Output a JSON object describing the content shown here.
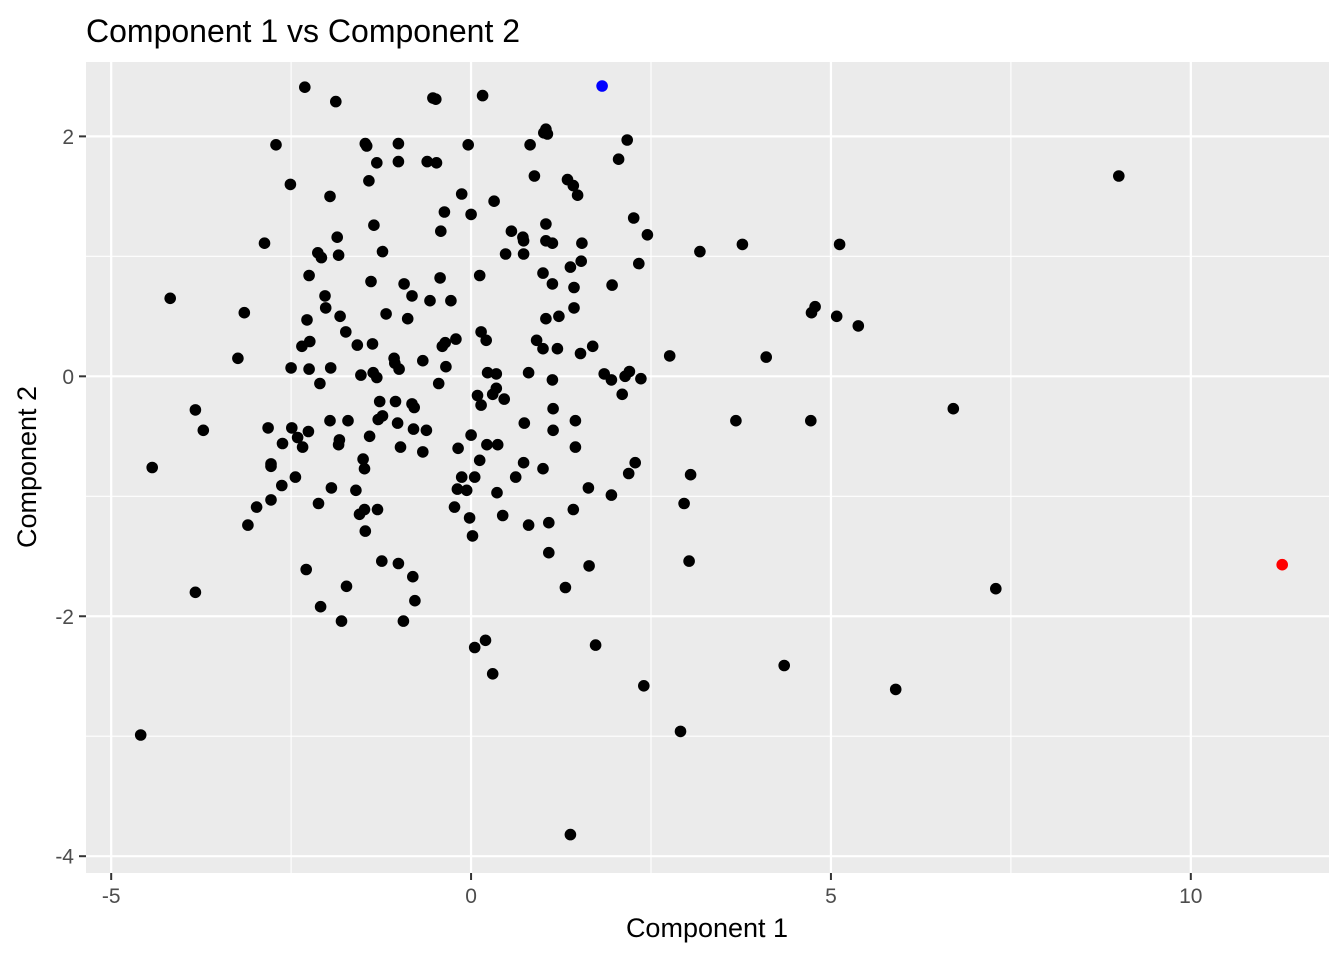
{
  "chart_data": {
    "type": "scatter",
    "title": "Component 1 vs Component 2",
    "xlabel": "Component 1",
    "ylabel": "Component 2",
    "xlim": [
      -5.35,
      11.92
    ],
    "ylim": [
      -4.14,
      2.62
    ],
    "xticks": [
      -5,
      0,
      5,
      10
    ],
    "xtick_labels": [
      "-5",
      "0",
      "5",
      "10"
    ],
    "yticks": [
      -4,
      -2,
      0,
      2
    ],
    "ytick_labels": [
      "-4",
      "-2",
      "0",
      "2"
    ],
    "grid": true,
    "legend": "none",
    "colors": {
      "panel": "#ebebeb",
      "grid": "#ffffff",
      "default_point": "#000000",
      "highlight_blue": "#0000ff",
      "highlight_red": "#ff0000"
    },
    "points": [
      [
        -2.31,
        2.41
      ],
      [
        -1.88,
        2.29
      ],
      [
        -0.53,
        2.32
      ],
      [
        -0.49,
        2.31
      ],
      [
        0.16,
        2.34
      ],
      [
        1.82,
        2.42,
        "#0000ff"
      ],
      [
        1.04,
        2.06
      ],
      [
        1.01,
        2.03
      ],
      [
        1.06,
        2.02
      ],
      [
        -2.71,
        1.93
      ],
      [
        -1.47,
        1.94
      ],
      [
        -1.45,
        1.92
      ],
      [
        -1.01,
        1.94
      ],
      [
        -0.04,
        1.93
      ],
      [
        0.82,
        1.93
      ],
      [
        2.17,
        1.97
      ],
      [
        2.05,
        1.81
      ],
      [
        -1.31,
        1.78
      ],
      [
        -1.01,
        1.79
      ],
      [
        -0.61,
        1.79
      ],
      [
        -0.48,
        1.78
      ],
      [
        0.88,
        1.67
      ],
      [
        1.34,
        1.64
      ],
      [
        1.42,
        1.59
      ],
      [
        1.48,
        1.51
      ],
      [
        -1.42,
        1.63
      ],
      [
        -2.51,
        1.6
      ],
      [
        -1.96,
        1.5
      ],
      [
        -0.13,
        1.52
      ],
      [
        0.32,
        1.46
      ],
      [
        -0.37,
        1.37
      ],
      [
        0.0,
        1.35
      ],
      [
        2.26,
        1.32
      ],
      [
        2.45,
        1.18
      ],
      [
        -1.35,
        1.26
      ],
      [
        -0.42,
        1.21
      ],
      [
        0.56,
        1.21
      ],
      [
        0.72,
        1.16
      ],
      [
        0.73,
        1.13
      ],
      [
        1.04,
        1.13
      ],
      [
        1.13,
        1.11
      ],
      [
        1.54,
        1.11
      ],
      [
        -2.87,
        1.11
      ],
      [
        -1.86,
        1.16
      ],
      [
        -2.13,
        1.03
      ],
      [
        -2.08,
        0.99
      ],
      [
        -1.84,
        1.01
      ],
      [
        -1.23,
        1.04
      ],
      [
        0.48,
        1.02
      ],
      [
        0.73,
        1.02
      ],
      [
        1.04,
        1.27
      ],
      [
        1.53,
        0.96
      ],
      [
        1.38,
        0.91
      ],
      [
        2.33,
        0.94
      ],
      [
        3.18,
        1.04
      ],
      [
        3.77,
        1.1
      ],
      [
        5.12,
        1.1
      ],
      [
        -2.25,
        0.84
      ],
      [
        -1.39,
        0.79
      ],
      [
        -0.43,
        0.82
      ],
      [
        0.12,
        0.84
      ],
      [
        1.0,
        0.86
      ],
      [
        1.13,
        0.77
      ],
      [
        1.43,
        0.74
      ],
      [
        1.96,
        0.76
      ],
      [
        -4.18,
        0.65
      ],
      [
        -2.03,
        0.67
      ],
      [
        -0.93,
        0.77
      ],
      [
        -0.82,
        0.67
      ],
      [
        -0.57,
        0.63
      ],
      [
        -0.28,
        0.63
      ],
      [
        4.73,
        0.53
      ],
      [
        4.78,
        0.58
      ],
      [
        5.08,
        0.5
      ],
      [
        5.38,
        0.42
      ],
      [
        -3.15,
        0.53
      ],
      [
        -2.02,
        0.57
      ],
      [
        -1.82,
        0.5
      ],
      [
        -1.18,
        0.52
      ],
      [
        -0.88,
        0.48
      ],
      [
        1.04,
        0.48
      ],
      [
        1.22,
        0.5
      ],
      [
        1.43,
        0.57
      ],
      [
        -2.28,
        0.47
      ],
      [
        -1.74,
        0.37
      ],
      [
        0.14,
        0.37
      ],
      [
        0.21,
        0.3
      ],
      [
        0.91,
        0.3
      ],
      [
        -2.35,
        0.25
      ],
      [
        -2.24,
        0.29
      ],
      [
        -1.58,
        0.26
      ],
      [
        -1.37,
        0.27
      ],
      [
        -0.4,
        0.25
      ],
      [
        -0.36,
        0.28
      ],
      [
        -0.21,
        0.31
      ],
      [
        1.0,
        0.23
      ],
      [
        1.2,
        0.23
      ],
      [
        1.52,
        0.19
      ],
      [
        1.69,
        0.25
      ],
      [
        2.76,
        0.17
      ],
      [
        4.1,
        0.16
      ],
      [
        -3.24,
        0.15
      ],
      [
        -2.5,
        0.07
      ],
      [
        -2.25,
        0.06
      ],
      [
        -1.95,
        0.07
      ],
      [
        -1.53,
        0.01
      ],
      [
        -1.36,
        0.03
      ],
      [
        -1.31,
        -0.01
      ],
      [
        -1.07,
        0.15
      ],
      [
        -1.06,
        0.11
      ],
      [
        -1.0,
        0.06
      ],
      [
        -0.67,
        0.13
      ],
      [
        -0.35,
        0.08
      ],
      [
        0.23,
        0.03
      ],
      [
        0.35,
        0.02
      ],
      [
        0.8,
        0.03
      ],
      [
        1.13,
        -0.03
      ],
      [
        1.85,
        0.02
      ],
      [
        1.95,
        -0.03
      ],
      [
        2.2,
        0.04
      ],
      [
        2.14,
        0.0
      ],
      [
        2.1,
        -0.15
      ],
      [
        2.36,
        -0.02
      ],
      [
        -2.1,
        -0.06
      ],
      [
        -1.27,
        -0.21
      ],
      [
        -1.05,
        -0.21
      ],
      [
        -0.82,
        -0.23
      ],
      [
        -0.79,
        -0.26
      ],
      [
        -0.45,
        -0.06
      ],
      [
        0.09,
        -0.16
      ],
      [
        0.14,
        -0.24
      ],
      [
        0.3,
        -0.15
      ],
      [
        0.35,
        -0.1
      ],
      [
        0.46,
        -0.19
      ],
      [
        1.14,
        -0.27
      ],
      [
        3.68,
        -0.37
      ],
      [
        4.72,
        -0.37
      ],
      [
        6.7,
        -0.27
      ],
      [
        -3.83,
        -0.28
      ],
      [
        -3.72,
        -0.45
      ],
      [
        -2.82,
        -0.43
      ],
      [
        -2.49,
        -0.43
      ],
      [
        -1.96,
        -0.37
      ],
      [
        -1.71,
        -0.37
      ],
      [
        -1.29,
        -0.36
      ],
      [
        -1.23,
        -0.33
      ],
      [
        -1.41,
        -0.5
      ],
      [
        -1.02,
        -0.39
      ],
      [
        -0.8,
        -0.44
      ],
      [
        -0.62,
        -0.45
      ],
      [
        0.0,
        -0.49
      ],
      [
        0.74,
        -0.39
      ],
      [
        1.14,
        -0.45
      ],
      [
        1.45,
        -0.37
      ],
      [
        -2.62,
        -0.56
      ],
      [
        -2.41,
        -0.51
      ],
      [
        -2.26,
        -0.46
      ],
      [
        -2.34,
        -0.59
      ],
      [
        -1.84,
        -0.57
      ],
      [
        -1.83,
        -0.53
      ],
      [
        -0.98,
        -0.59
      ],
      [
        -0.67,
        -0.63
      ],
      [
        -0.18,
        -0.6
      ],
      [
        0.22,
        -0.57
      ],
      [
        0.37,
        -0.57
      ],
      [
        1.45,
        -0.59
      ],
      [
        -4.43,
        -0.76
      ],
      [
        -2.78,
        -0.75
      ],
      [
        -2.78,
        -0.73
      ],
      [
        -1.5,
        -0.69
      ],
      [
        -1.48,
        -0.77
      ],
      [
        0.12,
        -0.7
      ],
      [
        0.73,
        -0.72
      ],
      [
        1.0,
        -0.77
      ],
      [
        2.28,
        -0.72
      ],
      [
        -2.44,
        -0.84
      ],
      [
        -1.94,
        -0.93
      ],
      [
        -1.6,
        -0.95
      ],
      [
        -0.19,
        -0.94
      ],
      [
        -0.13,
        -0.84
      ],
      [
        -0.06,
        -0.95
      ],
      [
        0.05,
        -0.84
      ],
      [
        0.36,
        -0.97
      ],
      [
        0.62,
        -0.84
      ],
      [
        1.63,
        -0.93
      ],
      [
        1.95,
        -0.99
      ],
      [
        2.19,
        -0.81
      ],
      [
        3.05,
        -0.82
      ],
      [
        -2.78,
        -1.03
      ],
      [
        -2.63,
        -0.91
      ],
      [
        -2.12,
        -1.06
      ],
      [
        -2.98,
        -1.09
      ],
      [
        -3.1,
        -1.24
      ],
      [
        -1.55,
        -1.15
      ],
      [
        -1.48,
        -1.11
      ],
      [
        -1.3,
        -1.11
      ],
      [
        -0.23,
        -1.09
      ],
      [
        -0.02,
        -1.18
      ],
      [
        0.44,
        -1.16
      ],
      [
        0.8,
        -1.24
      ],
      [
        1.08,
        -1.22
      ],
      [
        1.42,
        -1.11
      ],
      [
        2.96,
        -1.06
      ],
      [
        -1.47,
        -1.29
      ],
      [
        0.02,
        -1.33
      ],
      [
        1.08,
        -1.47
      ],
      [
        -1.24,
        -1.54
      ],
      [
        -1.01,
        -1.56
      ],
      [
        -2.29,
        -1.61
      ],
      [
        -0.81,
        -1.67
      ],
      [
        -1.73,
        -1.75
      ],
      [
        1.64,
        -1.58
      ],
      [
        3.03,
        -1.54
      ],
      [
        1.31,
        -1.76
      ],
      [
        7.29,
        -1.77
      ],
      [
        11.27,
        -1.57,
        "#ff0000"
      ],
      [
        -3.83,
        -1.8
      ],
      [
        -0.78,
        -1.87
      ],
      [
        -2.09,
        -1.92
      ],
      [
        -1.8,
        -2.04
      ],
      [
        -0.94,
        -2.04
      ],
      [
        0.2,
        -2.2
      ],
      [
        0.05,
        -2.26
      ],
      [
        1.73,
        -2.24
      ],
      [
        0.3,
        -2.48
      ],
      [
        4.35,
        -2.41
      ],
      [
        2.4,
        -2.58
      ],
      [
        5.9,
        -2.61
      ],
      [
        -4.59,
        -2.99
      ],
      [
        2.91,
        -2.96
      ],
      [
        1.38,
        -3.82
      ],
      [
        9.0,
        1.67
      ]
    ]
  }
}
